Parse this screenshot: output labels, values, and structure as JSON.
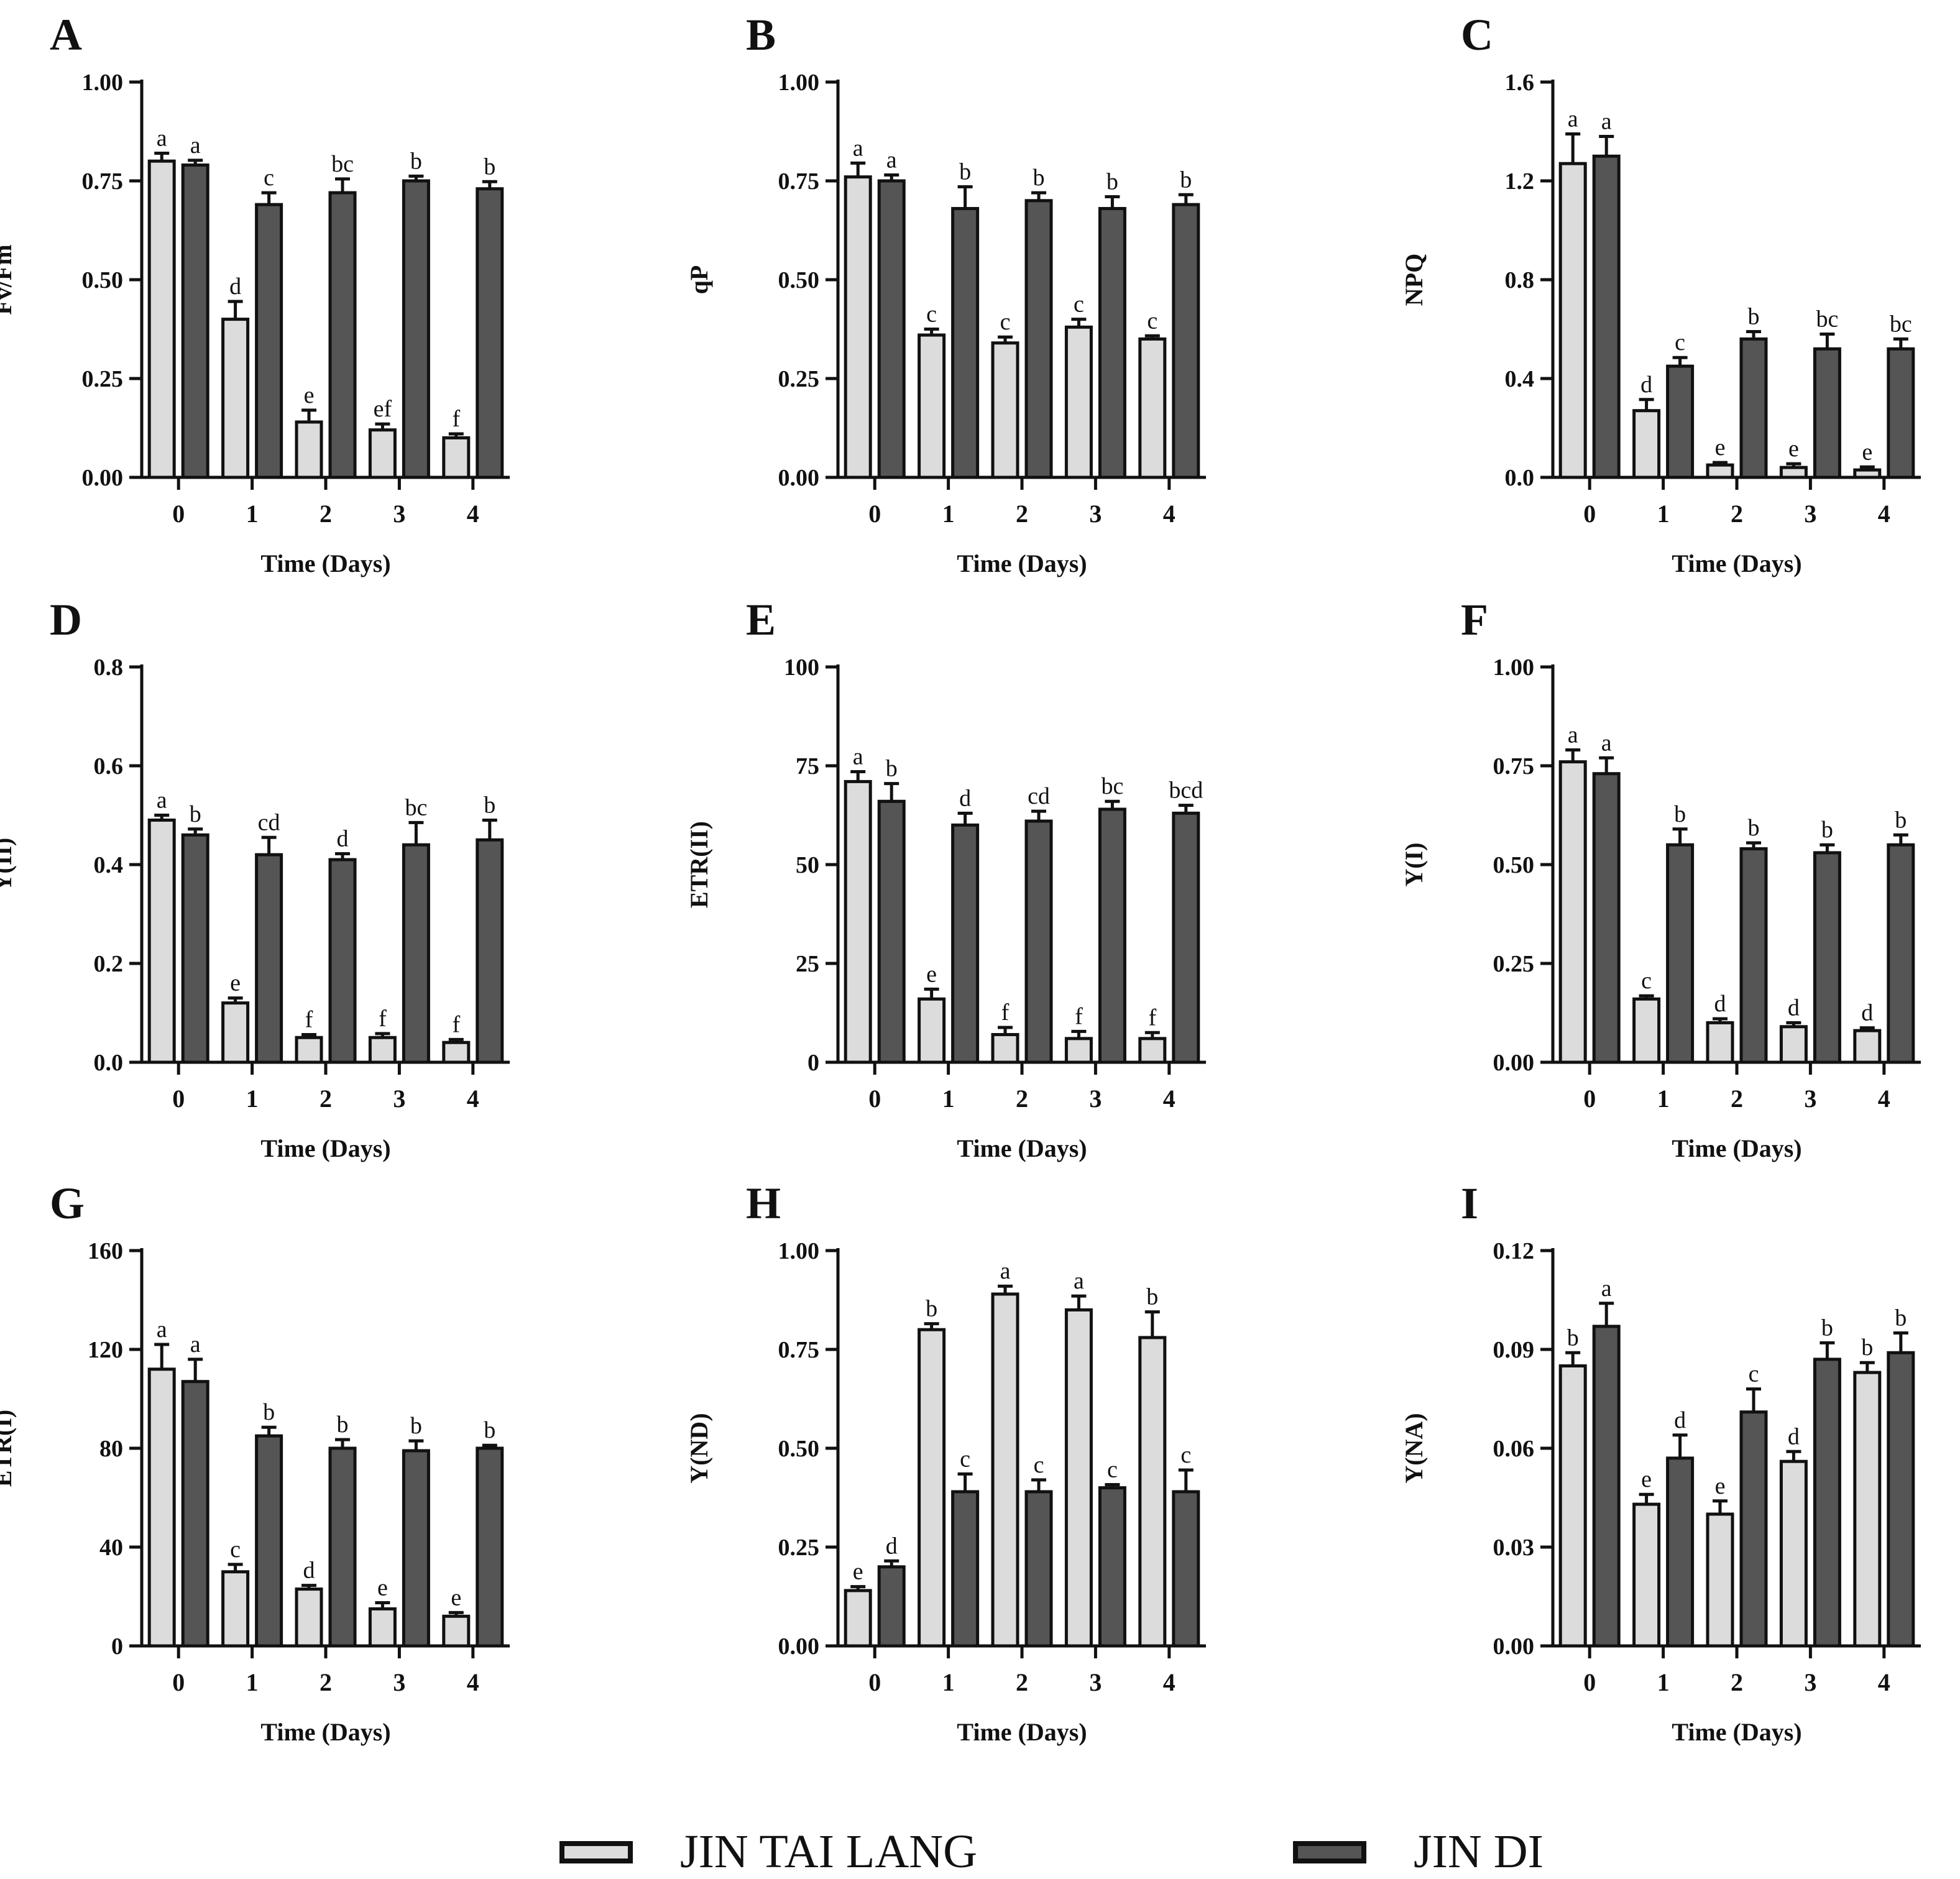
{
  "colors": {
    "jin_tai_lang": "#dcdcdc",
    "jin_di": "#555555",
    "axis": "#111111"
  },
  "legend": [
    {
      "name": "JIN TAI LANG",
      "color": "#dcdcdc"
    },
    {
      "name": "JIN DI",
      "color": "#555555"
    }
  ],
  "chart_data": [
    {
      "panel": "A",
      "type": "bar",
      "categories": [
        "0",
        "1",
        "2",
        "3",
        "4"
      ],
      "xlabel": "Time (Days)",
      "ylabel": "Fv/Fm",
      "ylim": [
        0,
        1.0
      ],
      "yticks": [
        "0.00",
        "0.25",
        "0.50",
        "0.75",
        "1.00"
      ],
      "series": [
        {
          "name": "JIN TAI LANG",
          "values": [
            0.8,
            0.4,
            0.14,
            0.12,
            0.1
          ],
          "errors": [
            0.02,
            0.045,
            0.03,
            0.015,
            0.01
          ],
          "letters": [
            "a",
            "d",
            "e",
            "ef",
            "f"
          ]
        },
        {
          "name": "JIN DI",
          "values": [
            0.79,
            0.69,
            0.72,
            0.75,
            0.73
          ],
          "errors": [
            0.012,
            0.03,
            0.035,
            0.012,
            0.018
          ],
          "letters": [
            "a",
            "c",
            "bc",
            "b",
            "b"
          ]
        }
      ]
    },
    {
      "panel": "B",
      "type": "bar",
      "categories": [
        "0",
        "1",
        "2",
        "3",
        "4"
      ],
      "xlabel": "Time (Days)",
      "ylabel": "qP",
      "ylim": [
        0,
        1.0
      ],
      "yticks": [
        "0.00",
        "0.25",
        "0.50",
        "0.75",
        "1.00"
      ],
      "series": [
        {
          "name": "JIN TAI LANG",
          "values": [
            0.76,
            0.36,
            0.34,
            0.38,
            0.35
          ],
          "errors": [
            0.035,
            0.015,
            0.015,
            0.02,
            0.008
          ],
          "letters": [
            "a",
            "c",
            "c",
            "c",
            "c"
          ]
        },
        {
          "name": "JIN DI",
          "values": [
            0.75,
            0.68,
            0.7,
            0.68,
            0.69
          ],
          "errors": [
            0.015,
            0.055,
            0.02,
            0.03,
            0.025
          ],
          "letters": [
            "a",
            "b",
            "b",
            "b",
            "b"
          ]
        }
      ]
    },
    {
      "panel": "C",
      "type": "bar",
      "categories": [
        "0",
        "1",
        "2",
        "3",
        "4"
      ],
      "xlabel": "Time (Days)",
      "ylabel": "NPQ",
      "ylim": [
        0,
        1.6
      ],
      "yticks": [
        "0.0",
        "0.4",
        "0.8",
        "1.2",
        "1.6"
      ],
      "series": [
        {
          "name": "JIN TAI LANG",
          "values": [
            1.27,
            0.27,
            0.05,
            0.04,
            0.03
          ],
          "errors": [
            0.12,
            0.045,
            0.01,
            0.015,
            0.012
          ],
          "letters": [
            "a",
            "d",
            "e",
            "e",
            "e"
          ]
        },
        {
          "name": "JIN DI",
          "values": [
            1.3,
            0.45,
            0.56,
            0.52,
            0.52
          ],
          "errors": [
            0.08,
            0.035,
            0.03,
            0.06,
            0.04
          ],
          "letters": [
            "a",
            "c",
            "b",
            "bc",
            "bc"
          ]
        }
      ]
    },
    {
      "panel": "D",
      "type": "bar",
      "categories": [
        "0",
        "1",
        "2",
        "3",
        "4"
      ],
      "xlabel": "Time (Days)",
      "ylabel": "Y(II)",
      "ylim": [
        0,
        0.8
      ],
      "yticks": [
        "0.0",
        "0.2",
        "0.4",
        "0.6",
        "0.8"
      ],
      "series": [
        {
          "name": "JIN TAI LANG",
          "values": [
            0.49,
            0.12,
            0.05,
            0.05,
            0.04
          ],
          "errors": [
            0.01,
            0.01,
            0.006,
            0.008,
            0.006
          ],
          "letters": [
            "a",
            "e",
            "f",
            "f",
            "f"
          ]
        },
        {
          "name": "JIN DI",
          "values": [
            0.46,
            0.42,
            0.41,
            0.44,
            0.45
          ],
          "errors": [
            0.012,
            0.035,
            0.012,
            0.045,
            0.04
          ],
          "letters": [
            "b",
            "cd",
            "d",
            "bc",
            "b"
          ]
        }
      ]
    },
    {
      "panel": "E",
      "type": "bar",
      "categories": [
        "0",
        "1",
        "2",
        "3",
        "4"
      ],
      "xlabel": "Time (Days)",
      "ylabel": "ETR(II)",
      "ylim": [
        0,
        100
      ],
      "yticks": [
        "0",
        "25",
        "50",
        "75",
        "100"
      ],
      "series": [
        {
          "name": "JIN TAI LANG",
          "values": [
            71,
            16,
            7,
            6,
            6
          ],
          "errors": [
            2.5,
            2.5,
            1.8,
            1.8,
            1.5
          ],
          "letters": [
            "a",
            "e",
            "f",
            "f",
            "f"
          ]
        },
        {
          "name": "JIN DI",
          "values": [
            66,
            60,
            61,
            64,
            63
          ],
          "errors": [
            4.5,
            3,
            2.5,
            2,
            2
          ],
          "letters": [
            "b",
            "d",
            "cd",
            "bc",
            "bcd"
          ]
        }
      ]
    },
    {
      "panel": "F",
      "type": "bar",
      "categories": [
        "0",
        "1",
        "2",
        "3",
        "4"
      ],
      "xlabel": "Time (Days)",
      "ylabel": "Y(I)",
      "ylim": [
        0,
        1.0
      ],
      "yticks": [
        "0.00",
        "0.25",
        "0.50",
        "0.75",
        "1.00"
      ],
      "series": [
        {
          "name": "JIN TAI LANG",
          "values": [
            0.76,
            0.16,
            0.1,
            0.09,
            0.08
          ],
          "errors": [
            0.03,
            0.008,
            0.01,
            0.01,
            0.007
          ],
          "letters": [
            "a",
            "c",
            "d",
            "d",
            "d"
          ]
        },
        {
          "name": "JIN DI",
          "values": [
            0.73,
            0.55,
            0.54,
            0.53,
            0.55
          ],
          "errors": [
            0.04,
            0.04,
            0.015,
            0.02,
            0.025
          ],
          "letters": [
            "a",
            "b",
            "b",
            "b",
            "b"
          ]
        }
      ]
    },
    {
      "panel": "G",
      "type": "bar",
      "categories": [
        "0",
        "1",
        "2",
        "3",
        "4"
      ],
      "xlabel": "Time (Days)",
      "ylabel": "ETR(I)",
      "ylim": [
        0,
        160
      ],
      "yticks": [
        "0",
        "40",
        "80",
        "120",
        "160"
      ],
      "series": [
        {
          "name": "JIN TAI LANG",
          "values": [
            112,
            30,
            23,
            15,
            12
          ],
          "errors": [
            10,
            3,
            1.5,
            2.5,
            1.5
          ],
          "letters": [
            "a",
            "c",
            "d",
            "e",
            "e"
          ]
        },
        {
          "name": "JIN DI",
          "values": [
            107,
            85,
            80,
            79,
            80
          ],
          "errors": [
            9,
            3.5,
            3.5,
            4,
            1.2
          ],
          "letters": [
            "a",
            "b",
            "b",
            "b",
            "b"
          ]
        }
      ]
    },
    {
      "panel": "H",
      "type": "bar",
      "categories": [
        "0",
        "1",
        "2",
        "3",
        "4"
      ],
      "xlabel": "Time (Days)",
      "ylabel": "Y(ND)",
      "ylim": [
        0,
        1.0
      ],
      "yticks": [
        "0.00",
        "0.25",
        "0.50",
        "0.75",
        "1.00"
      ],
      "series": [
        {
          "name": "JIN TAI LANG",
          "values": [
            0.14,
            0.8,
            0.89,
            0.85,
            0.78
          ],
          "errors": [
            0.01,
            0.015,
            0.02,
            0.035,
            0.065
          ],
          "letters": [
            "e",
            "b",
            "a",
            "a",
            "b"
          ]
        },
        {
          "name": "JIN DI",
          "values": [
            0.2,
            0.39,
            0.39,
            0.4,
            0.39
          ],
          "errors": [
            0.015,
            0.045,
            0.03,
            0.008,
            0.055
          ],
          "letters": [
            "d",
            "c",
            "c",
            "c",
            "c"
          ]
        }
      ]
    },
    {
      "panel": "I",
      "type": "bar",
      "categories": [
        "0",
        "1",
        "2",
        "3",
        "4"
      ],
      "xlabel": "Time (Days)",
      "ylabel": "Y(NA)",
      "ylim": [
        0,
        0.12
      ],
      "yticks": [
        "0.00",
        "0.03",
        "0.06",
        "0.09",
        "0.12"
      ],
      "series": [
        {
          "name": "JIN TAI LANG",
          "values": [
            0.085,
            0.043,
            0.04,
            0.056,
            0.083
          ],
          "errors": [
            0.004,
            0.003,
            0.004,
            0.003,
            0.003
          ],
          "letters": [
            "b",
            "e",
            "e",
            "d",
            "b"
          ]
        },
        {
          "name": "JIN DI",
          "values": [
            0.097,
            0.057,
            0.071,
            0.087,
            0.089
          ],
          "errors": [
            0.007,
            0.007,
            0.007,
            0.005,
            0.006
          ],
          "letters": [
            "a",
            "d",
            "c",
            "b",
            "b"
          ]
        }
      ]
    }
  ]
}
